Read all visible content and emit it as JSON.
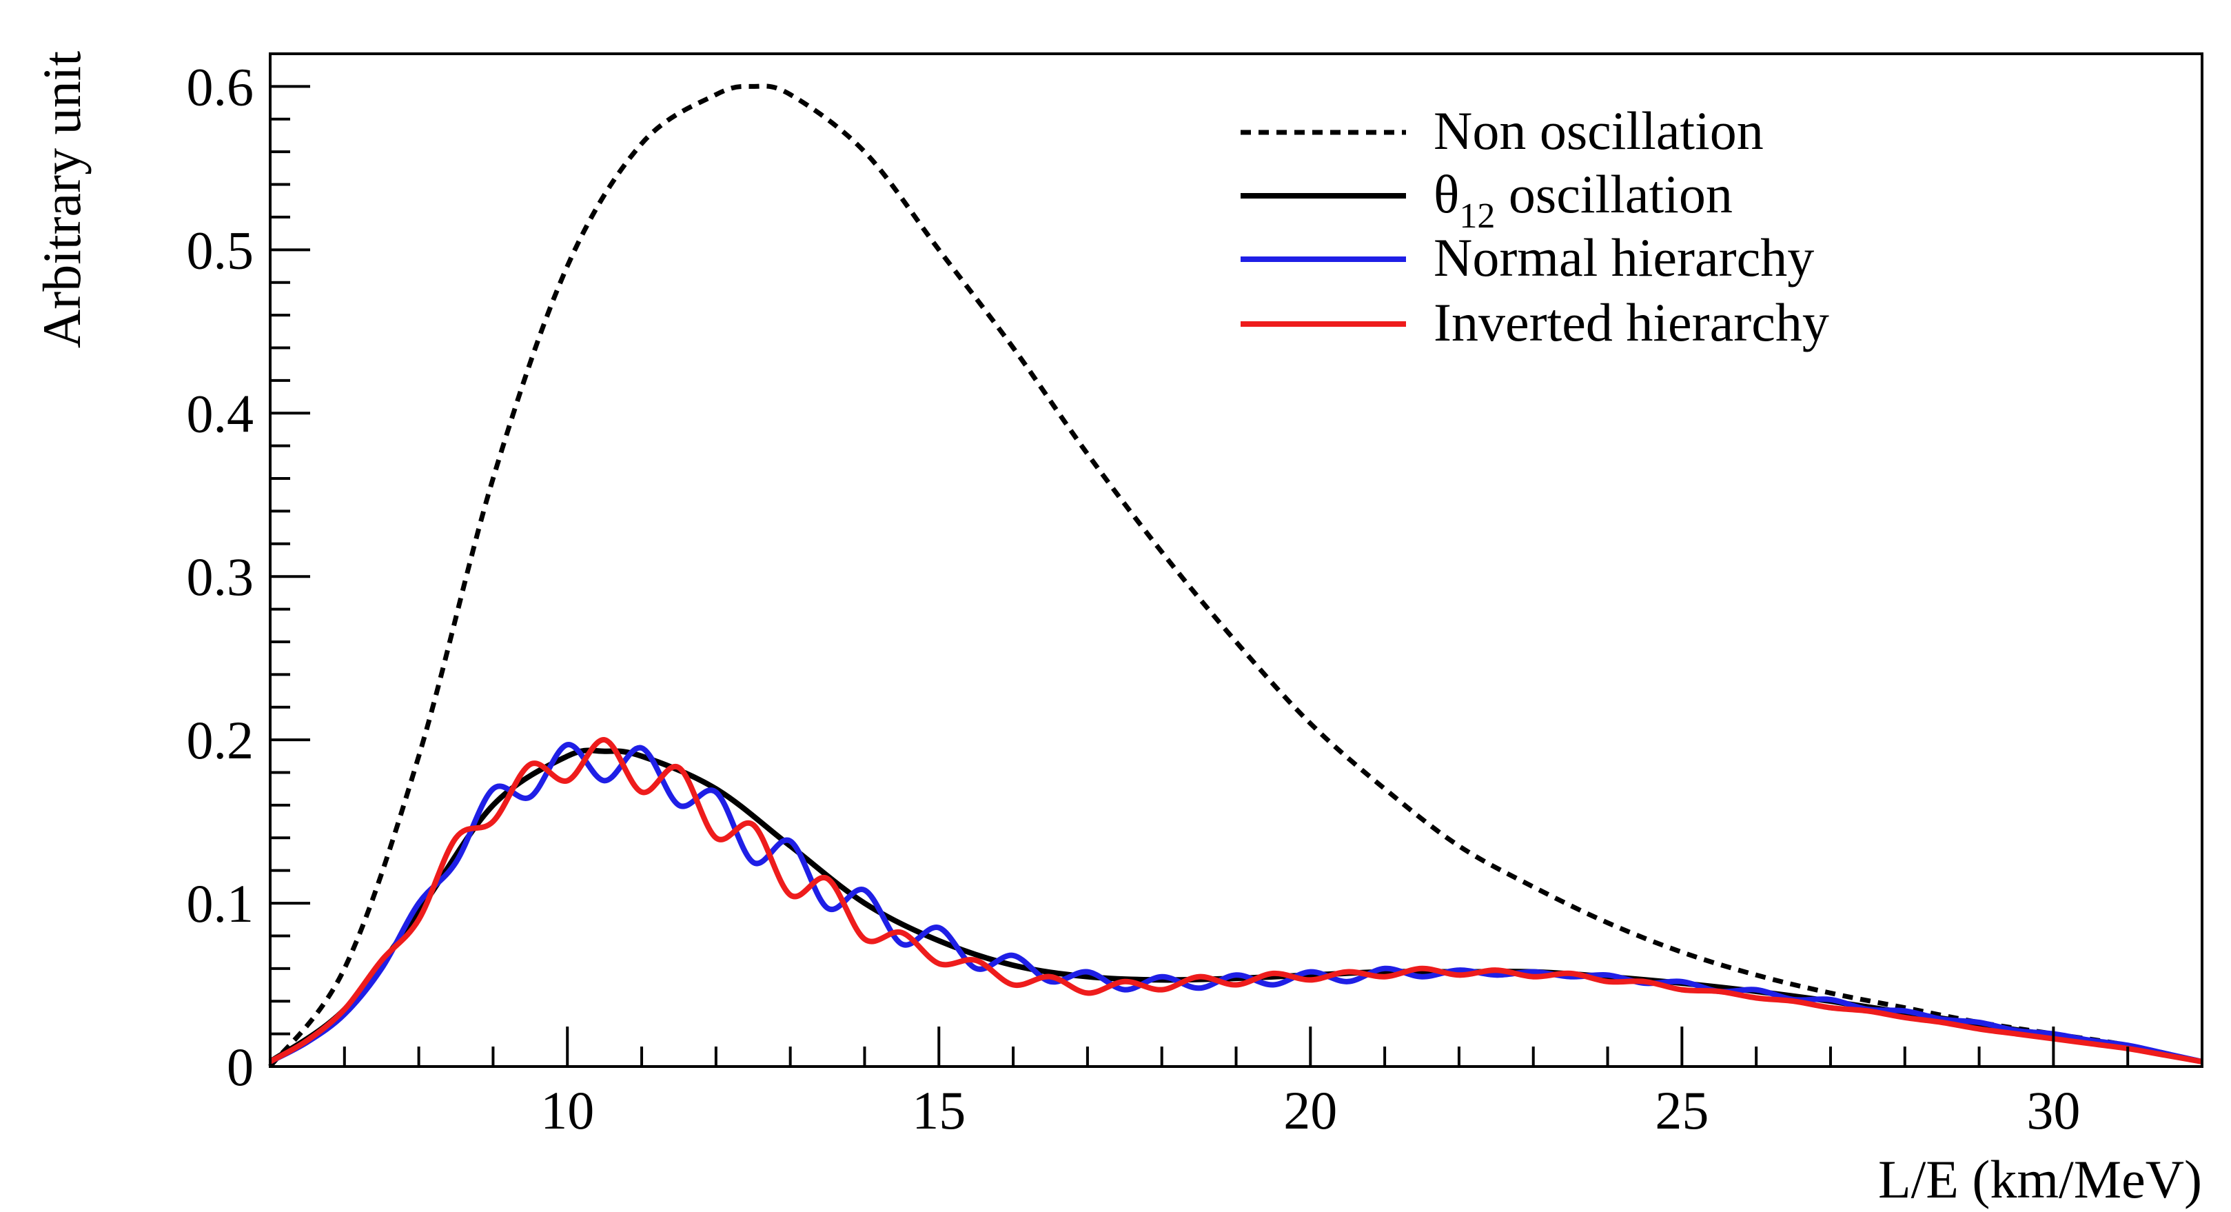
{
  "chart_data": {
    "type": "line",
    "title": "",
    "xlabel": "L/E (km/MeV)",
    "ylabel": "Arbitrary unit",
    "xlim": [
      6,
      32
    ],
    "ylim": [
      0,
      0.62
    ],
    "xticks": [
      10,
      15,
      20,
      25,
      30
    ],
    "xtick_labels": [
      "10",
      "15",
      "20",
      "25",
      "30"
    ],
    "yticks": [
      0,
      0.1,
      0.2,
      0.3,
      0.4,
      0.5,
      0.6
    ],
    "ytick_labels": [
      "0",
      "0.1",
      "0.2",
      "0.3",
      "0.4",
      "0.5",
      "0.6"
    ],
    "legend_position": "top-right",
    "series": [
      {
        "name": "Non oscillation",
        "label_main": "Non oscillation",
        "label_sub": "",
        "label_suffix": "",
        "color": "#000000",
        "style": "dashed",
        "x": [
          6.0,
          7.0,
          8.0,
          9.0,
          10.0,
          11.0,
          12.0,
          12.5,
          13.0,
          14.0,
          15.0,
          16.0,
          17.0,
          18.0,
          19.0,
          20.0,
          21.0,
          22.0,
          23.0,
          24.0,
          25.0,
          26.0,
          27.0,
          28.0,
          29.0,
          30.0,
          31.0,
          32.0
        ],
        "y": [
          0.0,
          0.06,
          0.19,
          0.36,
          0.49,
          0.565,
          0.595,
          0.6,
          0.595,
          0.56,
          0.5,
          0.44,
          0.375,
          0.315,
          0.26,
          0.21,
          0.17,
          0.135,
          0.11,
          0.088,
          0.07,
          0.056,
          0.045,
          0.036,
          0.027,
          0.02,
          0.013,
          0.003
        ]
      },
      {
        "name": "θ12 oscillation",
        "label_main": "θ",
        "label_sub": "12",
        "label_suffix": " oscillation",
        "color": "#000000",
        "style": "solid",
        "x": [
          6.0,
          7.0,
          8.0,
          9.0,
          10.0,
          10.5,
          11.0,
          12.0,
          13.0,
          14.0,
          15.0,
          16.0,
          17.0,
          18.0,
          19.0,
          20.0,
          21.0,
          22.0,
          23.0,
          24.0,
          25.0,
          26.0,
          27.0,
          28.0,
          29.0,
          30.0,
          31.0,
          32.0
        ],
        "y": [
          0.003,
          0.035,
          0.095,
          0.16,
          0.19,
          0.193,
          0.19,
          0.17,
          0.135,
          0.1,
          0.077,
          0.062,
          0.055,
          0.053,
          0.054,
          0.056,
          0.058,
          0.058,
          0.058,
          0.055,
          0.051,
          0.046,
          0.04,
          0.033,
          0.026,
          0.019,
          0.012,
          0.003
        ]
      },
      {
        "name": "Normal hierarchy",
        "label_main": "Normal hierarchy",
        "label_sub": "",
        "label_suffix": "",
        "color": "#1f1fe6",
        "style": "solid",
        "x": [
          6.0,
          6.5,
          7.0,
          7.5,
          8.0,
          8.5,
          9.0,
          9.5,
          10.0,
          10.5,
          11.0,
          11.5,
          12.0,
          12.5,
          13.0,
          13.5,
          14.0,
          14.5,
          15.0,
          15.5,
          16.0,
          16.5,
          17.0,
          17.5,
          18.0,
          18.5,
          19.0,
          19.5,
          20.0,
          20.5,
          21.0,
          21.5,
          22.0,
          22.5,
          23.0,
          23.5,
          24.0,
          24.5,
          25.0,
          25.5,
          26.0,
          26.5,
          27.0,
          27.5,
          28.0,
          28.5,
          29.0,
          29.5,
          30.0,
          30.5,
          31.0,
          31.5,
          32.0
        ],
        "y": [
          0.003,
          0.015,
          0.032,
          0.06,
          0.1,
          0.125,
          0.17,
          0.165,
          0.197,
          0.175,
          0.195,
          0.16,
          0.168,
          0.125,
          0.138,
          0.097,
          0.108,
          0.075,
          0.085,
          0.06,
          0.068,
          0.052,
          0.058,
          0.047,
          0.055,
          0.048,
          0.056,
          0.05,
          0.058,
          0.052,
          0.06,
          0.055,
          0.059,
          0.056,
          0.058,
          0.055,
          0.056,
          0.051,
          0.052,
          0.046,
          0.047,
          0.041,
          0.041,
          0.035,
          0.034,
          0.029,
          0.027,
          0.022,
          0.02,
          0.016,
          0.013,
          0.008,
          0.003
        ]
      },
      {
        "name": "Inverted hierarchy",
        "label_main": "Inverted hierarchy",
        "label_sub": "",
        "label_suffix": "",
        "color": "#ee1c1c",
        "style": "solid",
        "x": [
          6.0,
          6.5,
          7.0,
          7.5,
          8.0,
          8.5,
          9.0,
          9.5,
          10.0,
          10.5,
          11.0,
          11.5,
          12.0,
          12.5,
          13.0,
          13.5,
          14.0,
          14.5,
          15.0,
          15.5,
          16.0,
          16.5,
          17.0,
          17.5,
          18.0,
          18.5,
          19.0,
          19.5,
          20.0,
          20.5,
          21.0,
          21.5,
          22.0,
          22.5,
          23.0,
          23.5,
          24.0,
          24.5,
          25.0,
          25.5,
          26.0,
          26.5,
          27.0,
          27.5,
          28.0,
          28.5,
          29.0,
          29.5,
          30.0,
          30.5,
          31.0,
          31.5,
          32.0
        ],
        "y": [
          0.003,
          0.016,
          0.035,
          0.065,
          0.09,
          0.14,
          0.15,
          0.185,
          0.175,
          0.2,
          0.168,
          0.183,
          0.14,
          0.148,
          0.105,
          0.115,
          0.078,
          0.082,
          0.063,
          0.065,
          0.05,
          0.055,
          0.045,
          0.052,
          0.047,
          0.055,
          0.05,
          0.057,
          0.053,
          0.058,
          0.055,
          0.06,
          0.056,
          0.059,
          0.055,
          0.057,
          0.052,
          0.052,
          0.047,
          0.046,
          0.042,
          0.04,
          0.036,
          0.034,
          0.03,
          0.027,
          0.023,
          0.02,
          0.017,
          0.014,
          0.011,
          0.007,
          0.003
        ]
      }
    ]
  }
}
